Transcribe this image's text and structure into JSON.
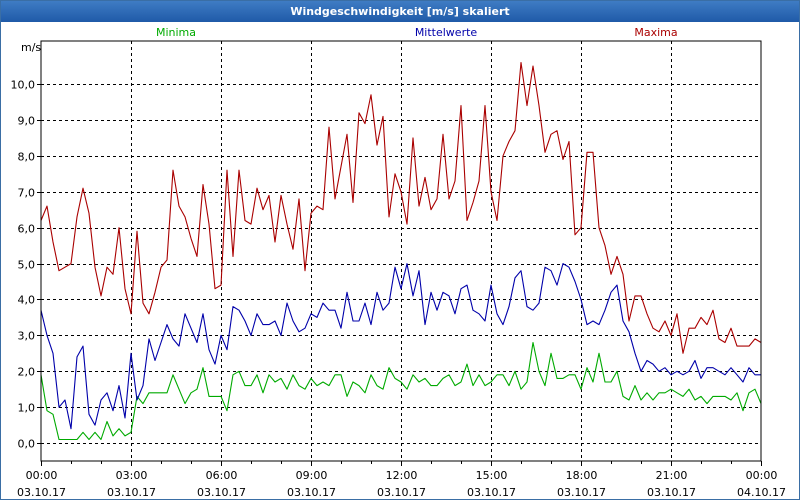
{
  "chart_data": {
    "type": "line",
    "title": "Windgeschwindigkeit [m/s] skaliert",
    "ylabel": "m/s",
    "xlabel": "",
    "ylim": [
      -0.5,
      11.2
    ],
    "yticks": [
      0,
      1,
      2,
      3,
      4,
      5,
      6,
      7,
      8,
      9,
      10
    ],
    "ytick_labels": [
      "0,0",
      "1,0",
      "2,0",
      "3,0",
      "4,0",
      "5,0",
      "6,0",
      "7,0",
      "8,0",
      "9,0",
      "10,0"
    ],
    "xlim": [
      0,
      24
    ],
    "xticks": [
      0,
      3,
      6,
      9,
      12,
      15,
      18,
      21,
      24
    ],
    "xtick_times": [
      "00:00",
      "03:00",
      "06:00",
      "09:00",
      "12:00",
      "15:00",
      "18:00",
      "21:00",
      "00:00"
    ],
    "xtick_dates": [
      "03.10.17",
      "03.10.17",
      "03.10.17",
      "03.10.17",
      "03.10.17",
      "03.10.17",
      "03.10.17",
      "03.10.17",
      "04.10.17"
    ],
    "grid": true,
    "series": [
      {
        "name": "Minima",
        "color": "#00aa00",
        "x": [
          0,
          0.2,
          0.4,
          0.6,
          0.8,
          1,
          1.2,
          1.4,
          1.6,
          1.8,
          2,
          2.2,
          2.4,
          2.6,
          2.8,
          3,
          3.2,
          3.4,
          3.6,
          3.8,
          4,
          4.2,
          4.4,
          4.6,
          4.8,
          5,
          5.2,
          5.4,
          5.6,
          5.8,
          6,
          6.2,
          6.4,
          6.6,
          6.8,
          7,
          7.2,
          7.4,
          7.6,
          7.8,
          8,
          8.2,
          8.4,
          8.6,
          8.8,
          9,
          9.2,
          9.4,
          9.6,
          9.8,
          10,
          10.2,
          10.4,
          10.6,
          10.8,
          11,
          11.2,
          11.4,
          11.6,
          11.8,
          12,
          12.2,
          12.4,
          12.6,
          12.8,
          13,
          13.2,
          13.4,
          13.6,
          13.8,
          14,
          14.2,
          14.4,
          14.6,
          14.8,
          15,
          15.2,
          15.4,
          15.6,
          15.8,
          16,
          16.2,
          16.4,
          16.6,
          16.8,
          17,
          17.2,
          17.4,
          17.6,
          17.8,
          18,
          18.2,
          18.4,
          18.6,
          18.8,
          19,
          19.2,
          19.4,
          19.6,
          19.8,
          20,
          20.2,
          20.4,
          20.6,
          20.8,
          21,
          21.2,
          21.4,
          21.6,
          21.8,
          22,
          22.2,
          22.4,
          22.6,
          22.8,
          23,
          23.2,
          23.4,
          23.6,
          23.8,
          24
        ],
        "values": [
          1.9,
          0.9,
          0.8,
          0.1,
          0.1,
          0.1,
          0.1,
          0.3,
          0.1,
          0.3,
          0.1,
          0.6,
          0.2,
          0.4,
          0.2,
          0.3,
          1.3,
          1.1,
          1.4,
          1.4,
          1.4,
          1.4,
          1.9,
          1.5,
          1.1,
          1.4,
          1.5,
          2.1,
          1.3,
          1.3,
          1.3,
          0.9,
          1.9,
          2.0,
          1.6,
          1.6,
          1.9,
          1.4,
          1.9,
          1.7,
          1.8,
          1.5,
          1.9,
          1.6,
          1.5,
          1.8,
          1.6,
          1.7,
          1.6,
          1.9,
          1.9,
          1.3,
          1.7,
          1.6,
          1.4,
          1.9,
          1.6,
          1.5,
          2.1,
          1.8,
          1.7,
          1.5,
          1.9,
          1.7,
          1.8,
          1.6,
          1.6,
          1.8,
          1.9,
          1.6,
          1.7,
          2.2,
          1.6,
          1.9,
          1.6,
          1.7,
          1.9,
          1.9,
          1.6,
          2.0,
          1.5,
          1.7,
          2.8,
          2.0,
          1.6,
          2.5,
          1.8,
          1.8,
          1.9,
          1.9,
          1.5,
          2.1,
          1.7,
          2.5,
          1.7,
          1.7,
          2.0,
          1.3,
          1.2,
          1.6,
          1.2,
          1.4,
          1.2,
          1.4,
          1.4,
          1.5,
          1.4,
          1.3,
          1.5,
          1.2,
          1.3,
          1.1,
          1.3,
          1.3,
          1.3,
          1.2,
          1.4,
          0.9,
          1.4,
          1.5,
          1.1
        ]
      },
      {
        "name": "Mittelwerte",
        "color": "#0000aa",
        "x": [
          0,
          0.2,
          0.4,
          0.6,
          0.8,
          1,
          1.2,
          1.4,
          1.6,
          1.8,
          2,
          2.2,
          2.4,
          2.6,
          2.8,
          3,
          3.2,
          3.4,
          3.6,
          3.8,
          4,
          4.2,
          4.4,
          4.6,
          4.8,
          5,
          5.2,
          5.4,
          5.6,
          5.8,
          6,
          6.2,
          6.4,
          6.6,
          6.8,
          7,
          7.2,
          7.4,
          7.6,
          7.8,
          8,
          8.2,
          8.4,
          8.6,
          8.8,
          9,
          9.2,
          9.4,
          9.6,
          9.8,
          10,
          10.2,
          10.4,
          10.6,
          10.8,
          11,
          11.2,
          11.4,
          11.6,
          11.8,
          12,
          12.2,
          12.4,
          12.6,
          12.8,
          13,
          13.2,
          13.4,
          13.6,
          13.8,
          14,
          14.2,
          14.4,
          14.6,
          14.8,
          15,
          15.2,
          15.4,
          15.6,
          15.8,
          16,
          16.2,
          16.4,
          16.6,
          16.8,
          17,
          17.2,
          17.4,
          17.6,
          17.8,
          18,
          18.2,
          18.4,
          18.6,
          18.8,
          19,
          19.2,
          19.4,
          19.6,
          19.8,
          20,
          20.2,
          20.4,
          20.6,
          20.8,
          21,
          21.2,
          21.4,
          21.6,
          21.8,
          22,
          22.2,
          22.4,
          22.6,
          22.8,
          23,
          23.2,
          23.4,
          23.6,
          23.8,
          24
        ],
        "values": [
          3.7,
          3.0,
          2.5,
          1.0,
          1.2,
          0.4,
          2.4,
          2.7,
          0.8,
          0.5,
          1.2,
          1.4,
          0.9,
          1.6,
          0.7,
          2.5,
          1.2,
          1.6,
          2.9,
          2.3,
          2.8,
          3.3,
          2.9,
          2.7,
          3.6,
          3.2,
          2.8,
          3.6,
          2.6,
          2.2,
          3.0,
          2.6,
          3.8,
          3.7,
          3.4,
          3.0,
          3.6,
          3.3,
          3.3,
          3.4,
          3.0,
          3.9,
          3.4,
          3.1,
          3.2,
          3.6,
          3.5,
          3.9,
          3.7,
          3.7,
          3.2,
          4.2,
          3.4,
          3.4,
          3.9,
          3.3,
          4.2,
          3.7,
          3.9,
          4.9,
          4.3,
          5.0,
          4.1,
          4.8,
          3.3,
          4.2,
          3.7,
          4.2,
          4.1,
          3.6,
          4.3,
          4.4,
          3.7,
          3.6,
          3.4,
          4.4,
          3.6,
          3.3,
          3.8,
          4.6,
          4.8,
          3.8,
          3.7,
          3.9,
          4.9,
          4.8,
          4.4,
          5.0,
          4.9,
          4.5,
          4.0,
          3.3,
          3.4,
          3.3,
          3.7,
          4.2,
          4.4,
          3.4,
          3.1,
          2.5,
          2.0,
          2.3,
          2.2,
          2.0,
          2.1,
          1.9,
          2.0,
          1.9,
          2.0,
          2.3,
          1.8,
          2.1,
          2.1,
          2.0,
          1.9,
          2.1,
          1.9,
          1.7,
          2.1,
          1.9,
          1.9
        ]
      },
      {
        "name": "Maxima",
        "color": "#aa0000",
        "x": [
          0,
          0.2,
          0.4,
          0.6,
          0.8,
          1,
          1.2,
          1.4,
          1.6,
          1.8,
          2,
          2.2,
          2.4,
          2.6,
          2.8,
          3,
          3.2,
          3.4,
          3.6,
          3.8,
          4,
          4.2,
          4.4,
          4.6,
          4.8,
          5,
          5.2,
          5.4,
          5.6,
          5.8,
          6,
          6.2,
          6.4,
          6.6,
          6.8,
          7,
          7.2,
          7.4,
          7.6,
          7.8,
          8,
          8.2,
          8.4,
          8.6,
          8.8,
          9,
          9.2,
          9.4,
          9.6,
          9.8,
          10,
          10.2,
          10.4,
          10.6,
          10.8,
          11,
          11.2,
          11.4,
          11.6,
          11.8,
          12,
          12.2,
          12.4,
          12.6,
          12.8,
          13,
          13.2,
          13.4,
          13.6,
          13.8,
          14,
          14.2,
          14.4,
          14.6,
          14.8,
          15,
          15.2,
          15.4,
          15.6,
          15.8,
          16,
          16.2,
          16.4,
          16.6,
          16.8,
          17,
          17.2,
          17.4,
          17.6,
          17.8,
          18,
          18.2,
          18.4,
          18.6,
          18.8,
          19,
          19.2,
          19.4,
          19.6,
          19.8,
          20,
          20.2,
          20.4,
          20.6,
          20.8,
          21,
          21.2,
          21.4,
          21.6,
          21.8,
          22,
          22.2,
          22.4,
          22.6,
          22.8,
          23,
          23.2,
          23.4,
          23.6,
          23.8,
          24
        ],
        "values": [
          6.2,
          6.6,
          5.6,
          4.8,
          4.9,
          5.0,
          6.3,
          7.1,
          6.4,
          4.9,
          4.1,
          4.9,
          4.7,
          6.0,
          4.3,
          3.6,
          5.9,
          3.9,
          3.6,
          4.2,
          4.9,
          5.1,
          7.6,
          6.6,
          6.3,
          5.7,
          5.2,
          7.2,
          6.1,
          4.3,
          4.4,
          7.6,
          5.2,
          7.6,
          6.2,
          6.1,
          7.1,
          6.5,
          6.9,
          5.6,
          6.9,
          6.1,
          5.4,
          6.8,
          4.8,
          6.4,
          6.6,
          6.5,
          8.8,
          6.8,
          7.7,
          8.6,
          6.7,
          9.2,
          8.9,
          9.7,
          8.3,
          9.1,
          6.3,
          7.5,
          7.0,
          6.1,
          8.5,
          6.6,
          7.4,
          6.5,
          6.8,
          8.6,
          6.8,
          7.3,
          9.4,
          6.2,
          6.7,
          7.3,
          9.4,
          7.0,
          6.2,
          8.0,
          8.4,
          8.7,
          10.6,
          9.4,
          10.5,
          9.4,
          8.1,
          8.6,
          8.7,
          7.9,
          8.4,
          5.8,
          6.0,
          8.1,
          8.1,
          6.0,
          5.5,
          4.7,
          5.2,
          4.7,
          3.4,
          4.1,
          4.1,
          3.6,
          3.2,
          3.1,
          3.4,
          3.0,
          3.6,
          2.5,
          3.2,
          3.2,
          3.5,
          3.3,
          3.7,
          2.9,
          2.8,
          3.2,
          2.7,
          2.7,
          2.7,
          2.9,
          2.8
        ]
      }
    ]
  }
}
